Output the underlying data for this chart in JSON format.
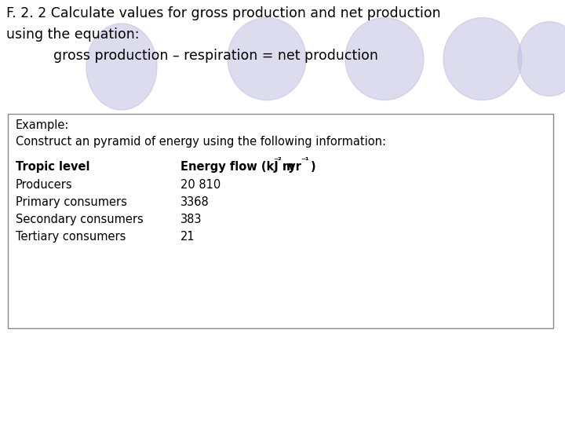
{
  "bg_color": "#ffffff",
  "title_line1": "F. 2. 2 Calculate values for gross production and net production",
  "title_line2": "using the equation:",
  "title_line3": "gross production – respiration = net production",
  "title_color": "#000000",
  "title_fontsize": 12.5,
  "box_text_line1": "Example:",
  "box_text_line2": "Construct an pyramid of energy using the following information:",
  "col1_header": "Tropic level",
  "rows": [
    [
      "Producers",
      "20 810"
    ],
    [
      "Primary consumers",
      "3368"
    ],
    [
      "Secondary consumers",
      "383"
    ],
    [
      "Tertiary consumers",
      "21"
    ]
  ],
  "ellipse_color": "#c0c0e0",
  "ellipse_alpha": 0.55,
  "font_size_body": 10.5,
  "font_size_header_bold": 10.5,
  "box_edge_color": "#888888",
  "box_face_color": "#ffffff"
}
